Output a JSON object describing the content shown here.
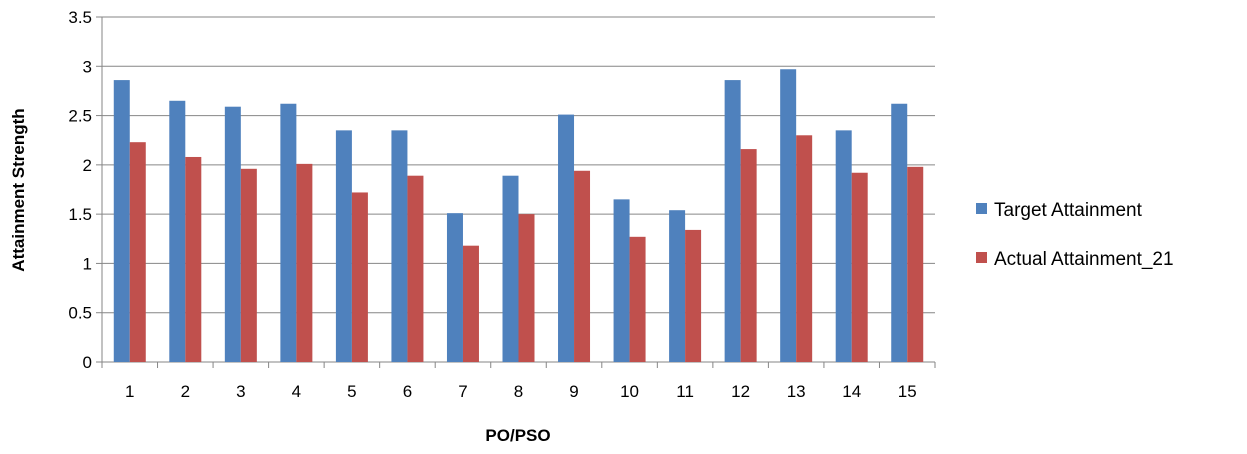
{
  "chart_data": {
    "type": "bar",
    "title": "",
    "xlabel": "PO/PSO",
    "ylabel": "Attainment Strength",
    "ylim": [
      0,
      3.5
    ],
    "yticks": [
      "0",
      "0.5",
      "1",
      "1.5",
      "2",
      "2.5",
      "3",
      "3.5"
    ],
    "grid": true,
    "legend_position": "right",
    "categories": [
      "1",
      "2",
      "3",
      "4",
      "5",
      "6",
      "7",
      "8",
      "9",
      "10",
      "11",
      "12",
      "13",
      "14",
      "15"
    ],
    "series": [
      {
        "name": "Target Attainment",
        "color": "#4f81bd",
        "values": [
          2.86,
          2.65,
          2.59,
          2.62,
          2.35,
          2.35,
          1.51,
          1.89,
          2.51,
          1.65,
          1.54,
          2.86,
          2.97,
          2.35,
          2.62
        ]
      },
      {
        "name": "Actual Attainment_21",
        "color": "#c0504d",
        "values": [
          2.23,
          2.08,
          1.96,
          2.01,
          1.72,
          1.89,
          1.18,
          1.5,
          1.94,
          1.27,
          1.34,
          2.16,
          2.3,
          1.92,
          1.98
        ]
      }
    ]
  }
}
